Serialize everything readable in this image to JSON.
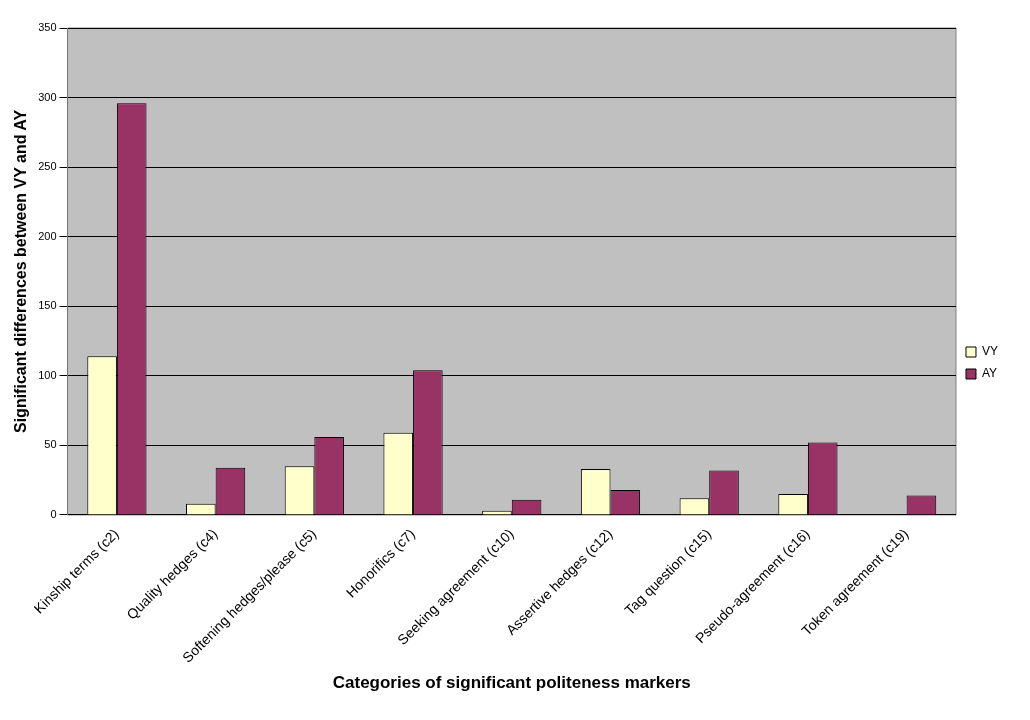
{
  "chart_data": {
    "type": "bar",
    "xlabel": "Categories of significant politeness markers",
    "ylabel": "Significant differences between VY and AY",
    "categories": [
      "Kinship terms (c2)",
      "Quality hedges (c4)",
      "Softening hedges/please (c5)",
      "Honorifics (c7)",
      "Seeking agreement (c10)",
      "Assertive hedges (c12)",
      "Tag question (c15)",
      "Pseudo-agreement (c16)",
      "Token agreement (c19)"
    ],
    "series": [
      {
        "name": "VY",
        "color": "#ffffcc",
        "values": [
          114,
          8,
          35,
          59,
          3,
          33,
          12,
          15,
          0
        ]
      },
      {
        "name": "AY",
        "color": "#993366",
        "values": [
          296,
          34,
          56,
          104,
          11,
          18,
          32,
          52,
          14
        ]
      }
    ],
    "ylim": [
      0,
      350
    ],
    "yticks": [
      0,
      50,
      100,
      150,
      200,
      250,
      300,
      350
    ],
    "grid": "y",
    "legend": "right"
  }
}
